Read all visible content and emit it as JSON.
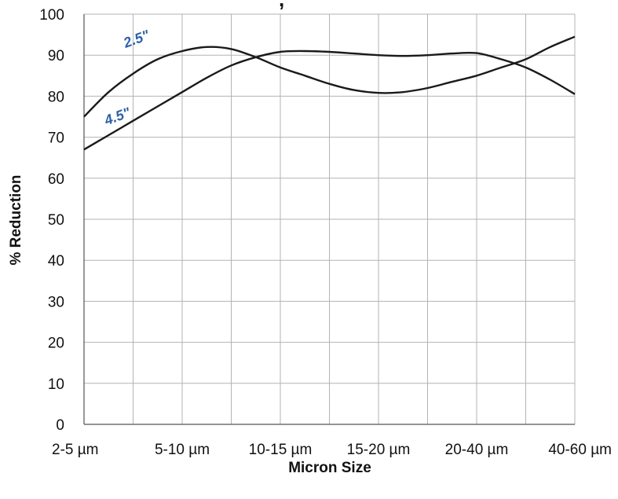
{
  "chart_data": {
    "type": "line",
    "title": "",
    "title_fragment": ", ",
    "xlabel": "Micron Size",
    "ylabel": "% Reduction",
    "categories": [
      "2-5 µm",
      "5-10 µm",
      "10-15 µm",
      "15-20 µm",
      "20-40 µm",
      "40-60 µm"
    ],
    "ylim": [
      0,
      100
    ],
    "yticks": [
      0,
      10,
      20,
      30,
      40,
      50,
      60,
      70,
      80,
      90,
      100
    ],
    "grid": true,
    "series": [
      {
        "name": "2.5\"",
        "label_color": "#2e62a8",
        "x": [
          0,
          0.25,
          0.5,
          0.75,
          1,
          1.25,
          1.5,
          1.75,
          2,
          2.25,
          2.5,
          2.75,
          3,
          3.25,
          3.5,
          3.75,
          4,
          4.25,
          4.5,
          4.75,
          5
        ],
        "values": [
          75,
          81,
          85.5,
          89,
          91,
          92,
          91.5,
          89.5,
          87,
          85,
          83,
          81.5,
          80.8,
          81,
          82,
          83.5,
          85,
          87,
          89,
          92,
          94.5
        ]
      },
      {
        "name": "4.5\"",
        "label_color": "#2e62a8",
        "x": [
          0,
          0.25,
          0.5,
          0.75,
          1,
          1.25,
          1.5,
          1.75,
          2,
          2.25,
          2.5,
          2.75,
          3,
          3.25,
          3.5,
          3.75,
          4,
          4.25,
          4.5,
          4.75,
          5
        ],
        "values": [
          67,
          70.5,
          74,
          77.5,
          81,
          84.5,
          87.5,
          89.5,
          90.8,
          91,
          90.8,
          90.4,
          90,
          89.8,
          90,
          90.4,
          90.5,
          89,
          87,
          84,
          80.5
        ]
      }
    ]
  }
}
